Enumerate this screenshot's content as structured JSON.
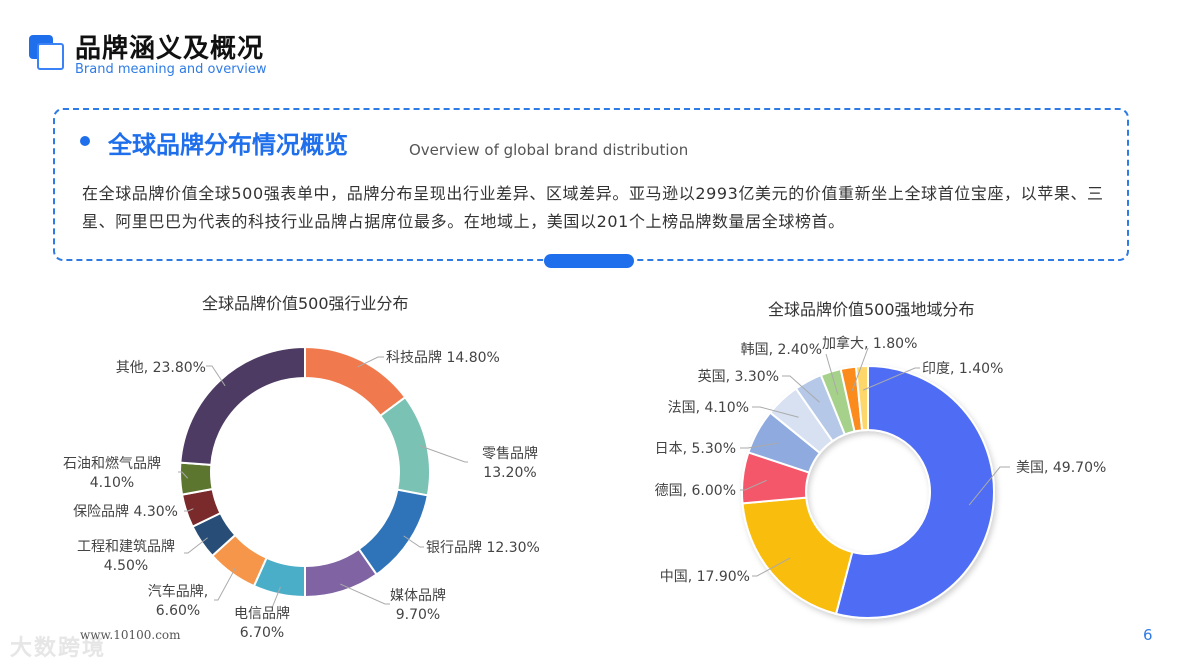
{
  "header": {
    "title": "品牌涵义及概况",
    "subtitle": "Brand meaning and overview"
  },
  "summary": {
    "heading": "全球品牌分布情况概览",
    "heading_en": "Overview of global brand distribution",
    "text": "在全球品牌价值全球500强表单中，品牌分布呈现出行业差异、区域差异。亚马逊以2993亿美元的价值重新坐上全球首位宝座，以苹果、三星、阿里巴巴为代表的科技行业品牌占据席位最多。在地域上，美国以201个上榜品牌数量居全球榜首。"
  },
  "footer": {
    "url": "www.10100.com",
    "watermark": "大数跨境",
    "page_number": "6"
  },
  "chart_data": [
    {
      "type": "pie",
      "variant": "donut",
      "title": "全球品牌价值500强行业分布",
      "categories": [
        "科技品牌",
        "零售品牌",
        "银行品牌",
        "媒体品牌",
        "电信品牌",
        "汽车品牌",
        "工程和建筑品牌",
        "保险品牌",
        "石油和燃气品牌",
        "其他"
      ],
      "values": [
        14.8,
        13.2,
        12.3,
        9.7,
        6.7,
        6.6,
        4.5,
        4.3,
        4.1,
        23.8
      ],
      "labels": [
        "科技品牌 14.80%",
        "零售品牌\n13.20%",
        "银行品牌 12.30%",
        "媒体品牌\n9.70%",
        "电信品牌\n6.70%",
        "汽车品牌,\n6.60%",
        "工程和建筑品牌\n4.50%",
        "保险品牌 4.30%",
        "石油和燃气品牌\n4.10%",
        "其他, 23.80%"
      ],
      "colors": [
        "#f07a4e",
        "#7ac2b3",
        "#2f74b9",
        "#7f63a3",
        "#4aaec8",
        "#f6964a",
        "#284d77",
        "#7a2a2a",
        "#5c7630",
        "#4d3b63"
      ],
      "unit": "%"
    },
    {
      "type": "pie",
      "variant": "donut",
      "title": "全球品牌价值500强地域分布",
      "categories": [
        "美国",
        "中国",
        "德国",
        "日本",
        "法国",
        "英国",
        "韩国",
        "加拿大",
        "印度"
      ],
      "values": [
        49.7,
        17.9,
        6.0,
        5.3,
        4.1,
        3.3,
        2.4,
        1.8,
        1.4
      ],
      "labels": [
        "美国, 49.70%",
        "中国, 17.90%",
        "德国, 6.00%",
        "日本, 5.30%",
        "法国, 4.10%",
        "英国, 3.30%",
        "韩国, 2.40%",
        "加拿大, 1.80%",
        "印度, 1.40%"
      ],
      "colors": [
        "#4f6cf5",
        "#f9bd0b",
        "#f4576a",
        "#8eaadf",
        "#d7e1f2",
        "#b5c8e8",
        "#a6d18b",
        "#fb8b1e",
        "#fdd76a"
      ],
      "unit": "%"
    }
  ]
}
